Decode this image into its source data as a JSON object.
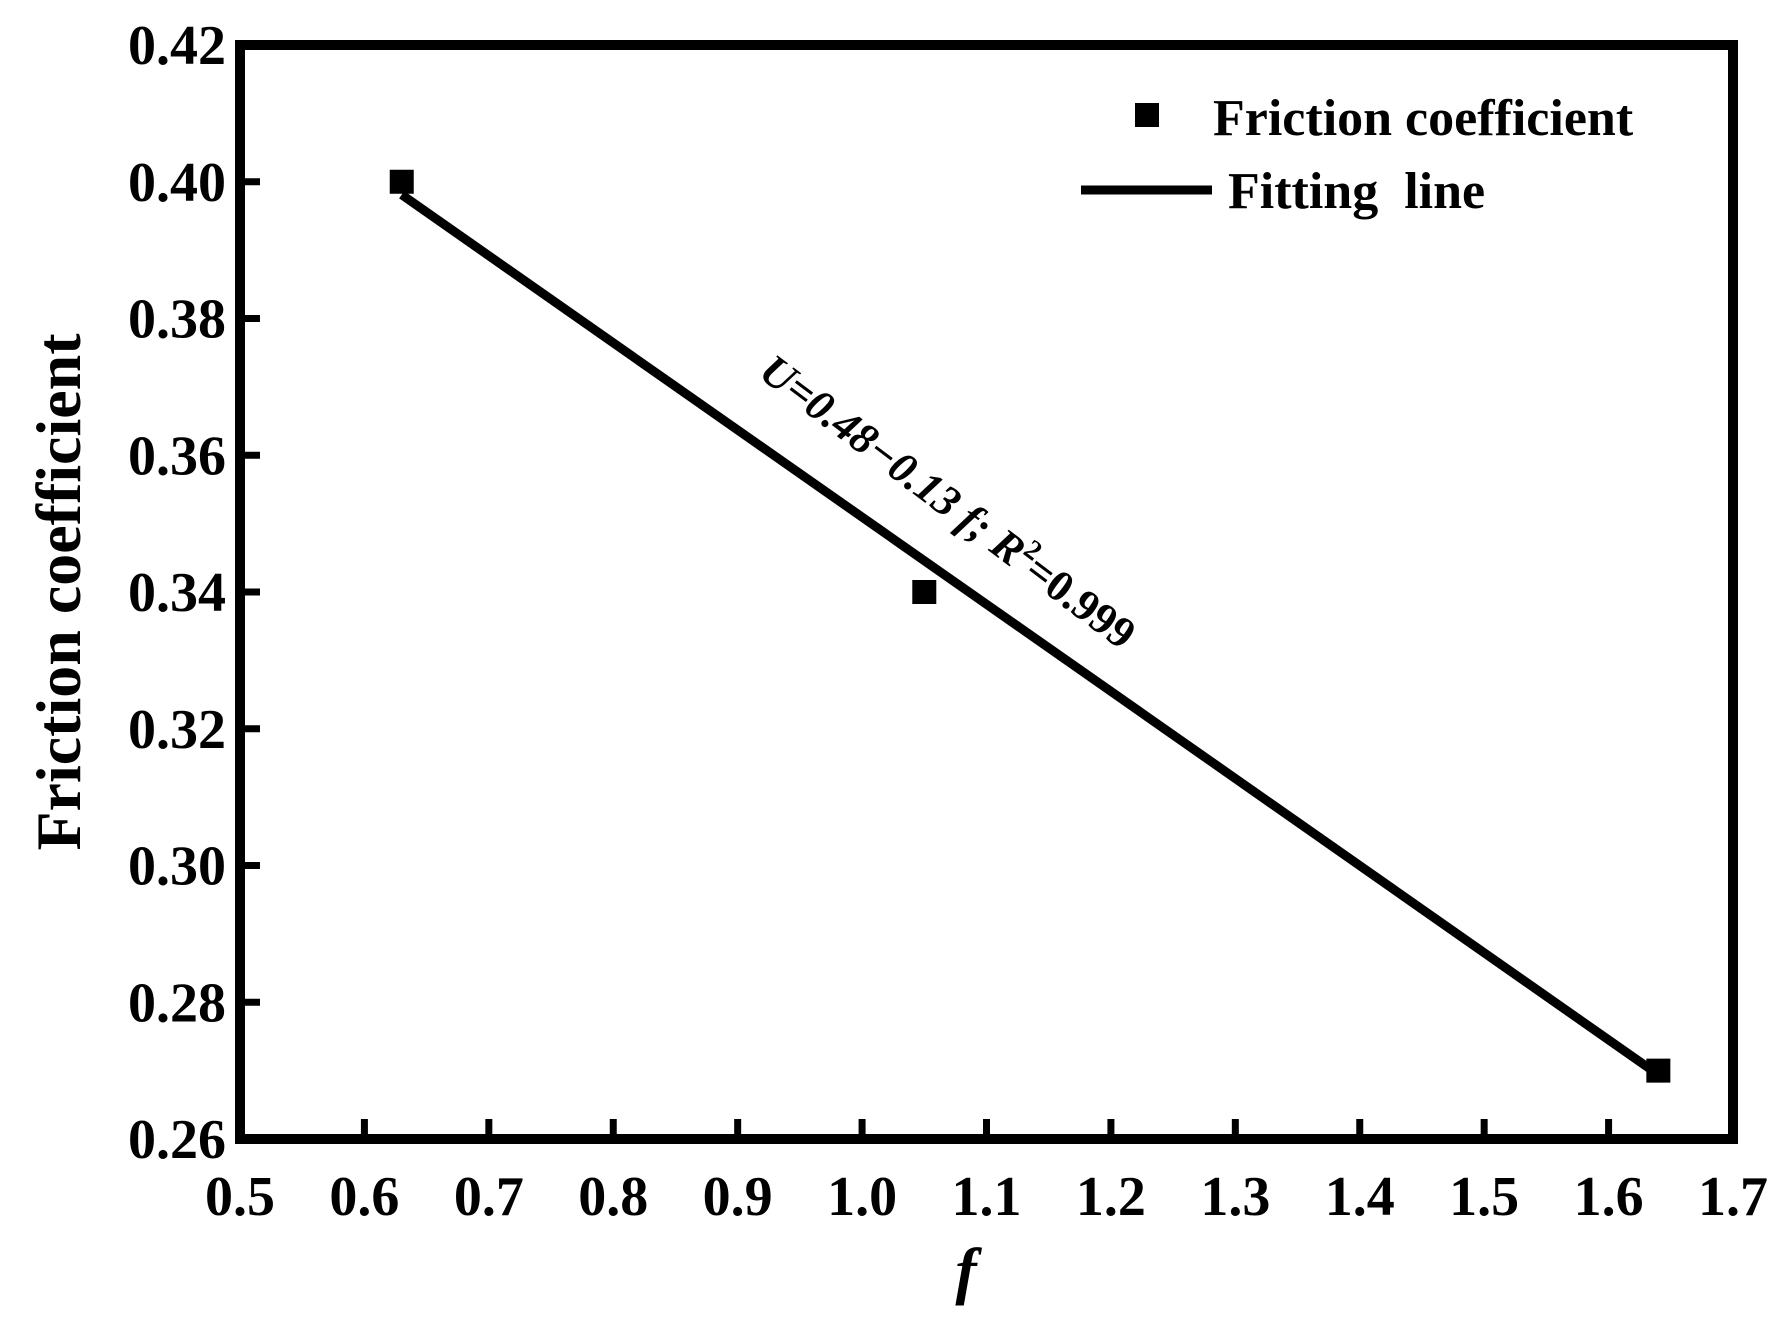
{
  "chart_data": {
    "type": "scatter",
    "title": "",
    "xlabel": "f",
    "ylabel": "Friction coefficient",
    "xlim": [
      0.5,
      1.7
    ],
    "ylim": [
      0.26,
      0.42
    ],
    "x_ticks": [
      "0.5",
      "0.6",
      "0.7",
      "0.8",
      "0.9",
      "1.0",
      "1.1",
      "1.2",
      "1.3",
      "1.4",
      "1.5",
      "1.6",
      "1.7"
    ],
    "y_ticks": [
      "0.26",
      "0.28",
      "0.30",
      "0.32",
      "0.34",
      "0.36",
      "0.38",
      "0.40",
      "0.42"
    ],
    "grid": false,
    "legend_position": "top-right",
    "series": [
      {
        "name": "Friction coefficient",
        "kind": "scatter",
        "marker": "square",
        "color": "#000000",
        "x": [
          0.63,
          1.05,
          1.64
        ],
        "y": [
          0.4,
          0.34,
          0.27
        ]
      },
      {
        "name": "Fitting  line",
        "kind": "line",
        "color": "#000000",
        "x": [
          0.63,
          1.64
        ],
        "y": [
          0.3981,
          0.2694
        ]
      }
    ],
    "annotation": {
      "equation": "U=0.48−0.13 f; ",
      "r_symbol": "R",
      "r_exponent": "2",
      "r_value": "=0.999"
    }
  }
}
